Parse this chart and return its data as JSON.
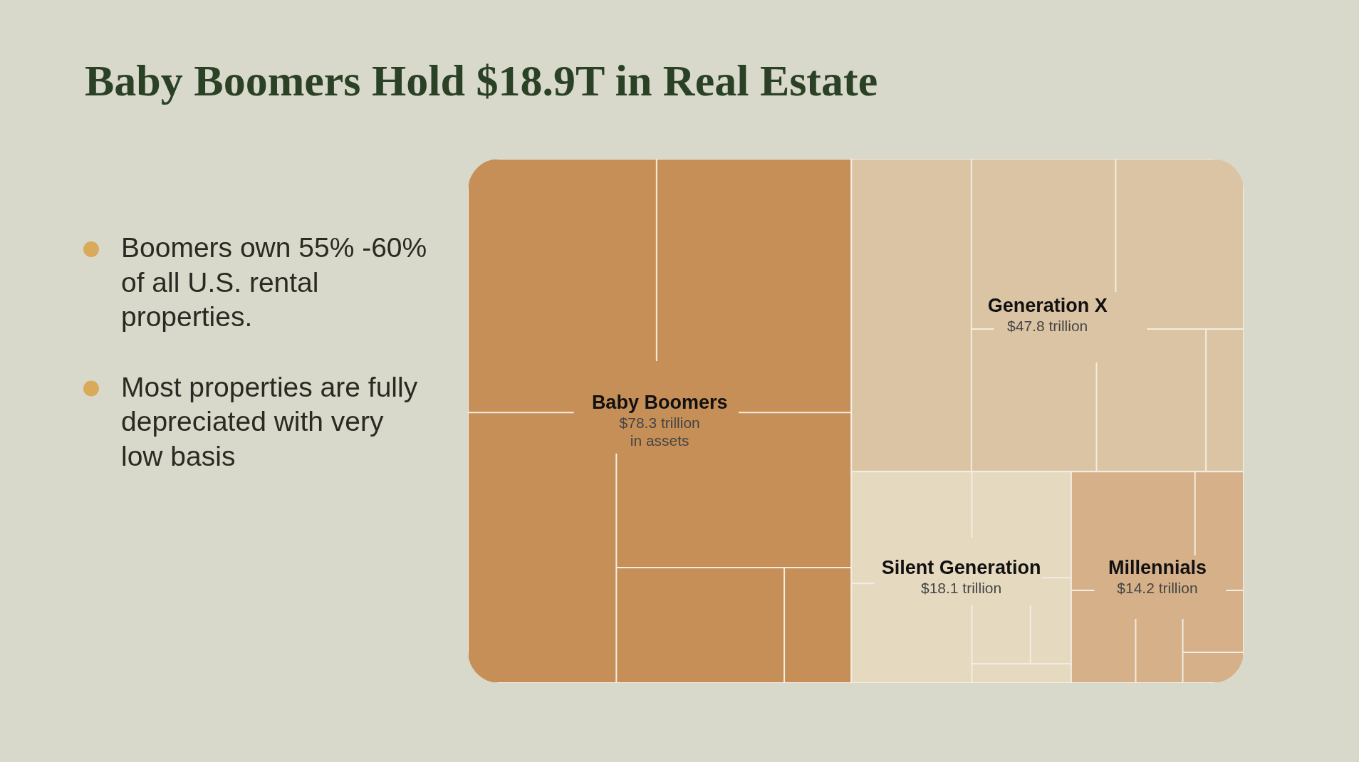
{
  "chart_data": {
    "type": "other",
    "title": "Baby Boomers Hold $18.9T in Real Estate",
    "categories": [
      "Baby Boomers",
      "Generation X",
      "Silent Generation",
      "Millennials"
    ],
    "values": [
      78.3,
      47.8,
      18.1,
      14.2
    ],
    "colors": [
      "#c68f58",
      "#dbc4a4",
      "#e5d9c0",
      "#d5b089"
    ],
    "value_labels": [
      "$78.3 trillion\nin assets",
      "$47.8 trillion",
      "$18.1 trillion",
      "$14.2 trillion"
    ],
    "annotations": [
      "Boomers own 55% -60% of all U.S. rental properties.",
      "Most properties are fully depreciated with very low basis"
    ]
  }
}
